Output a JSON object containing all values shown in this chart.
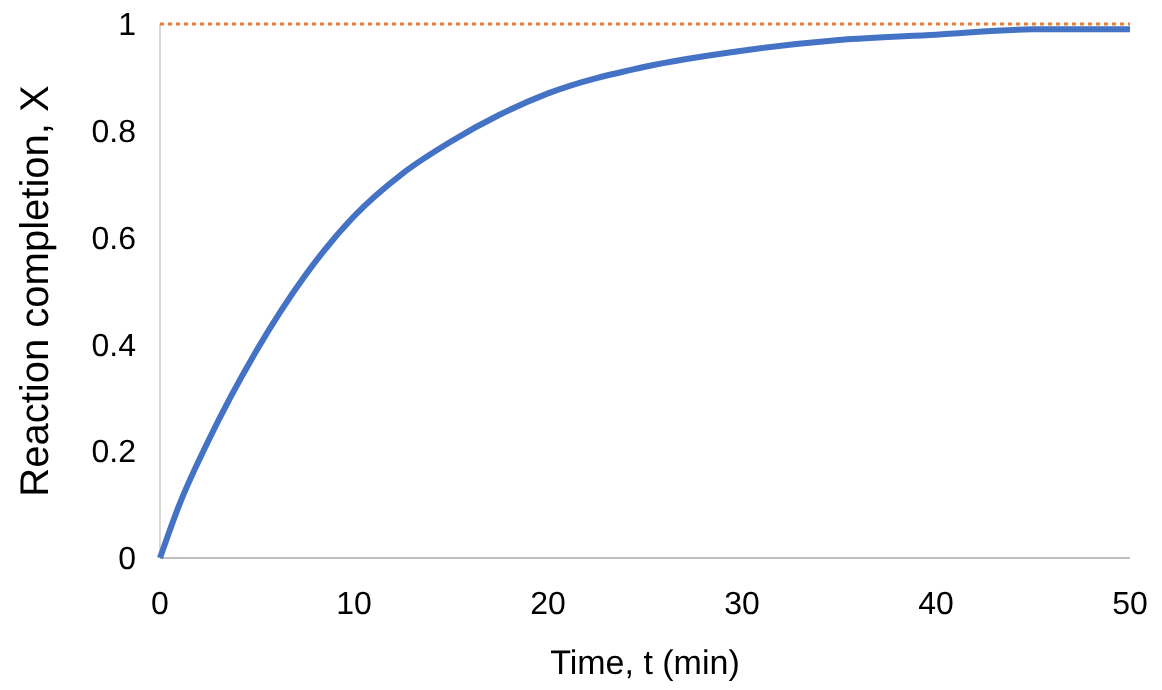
{
  "chart_data": {
    "type": "line",
    "xlabel": "Time, t (min)",
    "ylabel": "Reaction completion, X",
    "x": [
      0,
      1,
      2.5,
      5,
      7.5,
      10,
      12.5,
      15,
      17.5,
      20,
      25,
      30,
      35,
      40,
      45,
      50
    ],
    "series": [
      {
        "color": "#4472c4",
        "values": [
          0,
          0.1,
          0.22,
          0.39,
          0.53,
          0.64,
          0.72,
          0.78,
          0.83,
          0.87,
          0.92,
          0.95,
          0.97,
          0.98,
          0.99,
          0.99
        ]
      }
    ],
    "xlim": [
      0,
      50
    ],
    "ylim": [
      0,
      1
    ],
    "xticks": [
      0,
      10,
      20,
      30,
      40,
      50
    ],
    "yticks": [
      0,
      0.2,
      0.4,
      0.6,
      0.8,
      1
    ],
    "ref_lines": [
      {
        "axis": "y",
        "value": 1,
        "color": "#ed7d31",
        "line_style": "dotted"
      }
    ],
    "grid": false
  }
}
